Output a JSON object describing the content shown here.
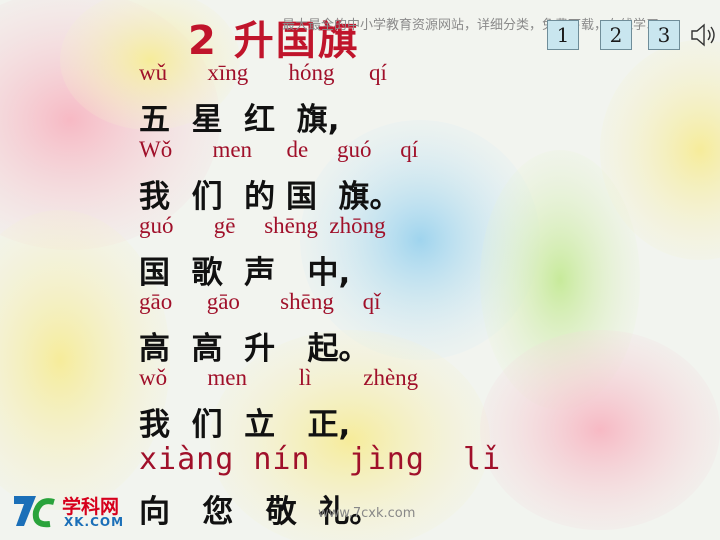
{
  "title": "2 升国旗",
  "banner": "最大最全的中小学教育资源网站，详细分类，免费下载，在线学习",
  "nav": [
    "1",
    "2",
    "3"
  ],
  "lines": [
    {
      "pinyin": "wǔ       xīng       hóng      qí",
      "hanzi": "五  星  红  旗,"
    },
    {
      "pinyin": "Wǒ       men      de     guó     qí",
      "hanzi": "我  们  的 国  旗。"
    },
    {
      "pinyin": "guó       gē     shēng  zhōng",
      "hanzi": "国  歌  声   中,"
    },
    {
      "pinyin": "gāo      gāo       shēng     qǐ",
      "hanzi": "高  高  升   起。"
    },
    {
      "pinyin": "wǒ       men         lì         zhèng",
      "hanzi": "我  们  立   正,"
    },
    {
      "pinyin": "xiàng nín  jìng  lǐ",
      "hanzi": "向   您   敬  礼。"
    }
  ],
  "logo": {
    "name": "学科网",
    "domain": "XK.COM"
  },
  "watermark": "www.7cxk.com"
}
